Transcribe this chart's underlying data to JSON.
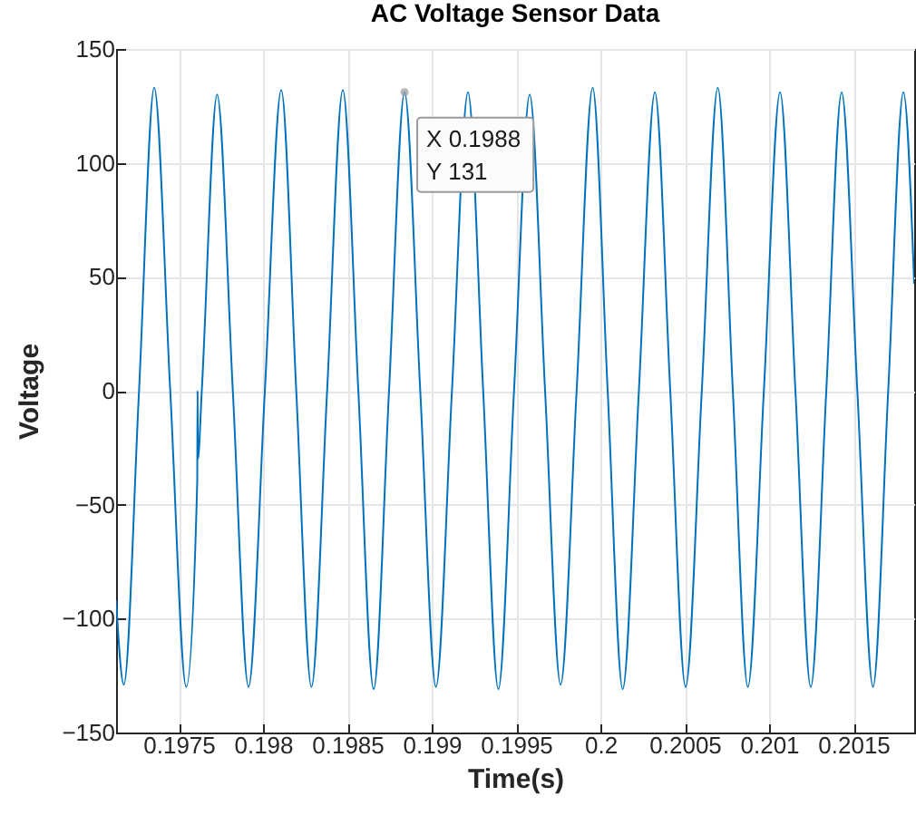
{
  "chart_data": {
    "type": "line",
    "title": "AC Voltage Sensor Data",
    "xlabel": "Time(s)",
    "ylabel": "Voltage",
    "x": [
      0.197129,
      0.197175,
      0.197265,
      0.197355,
      0.19745,
      0.197545,
      0.19761,
      0.197612,
      0.197614,
      0.197637,
      0.197728,
      0.197821,
      0.197914,
      0.198011,
      0.198108,
      0.198197,
      0.198287,
      0.19838,
      0.198473,
      0.198565,
      0.198656,
      0.198747,
      0.198839,
      0.198932,
      0.199025,
      0.19912,
      0.199215,
      0.199305,
      0.199395,
      0.199488,
      0.199581,
      0.199672,
      0.199764,
      0.199859,
      0.199954,
      0.200043,
      0.200132,
      0.200228,
      0.200323,
      0.200414,
      0.200505,
      0.200601,
      0.200696,
      0.200785,
      0.200874,
      0.200969,
      0.201065,
      0.201156,
      0.201247,
      0.201339,
      0.20143,
      0.201523,
      0.201616,
      0.201706,
      0.201796,
      0.20186
    ],
    "series": [
      {
        "color": "#0072bd",
        "values": [
          -92,
          -129,
          0,
          133,
          0,
          -130,
          -40,
          0,
          -30,
          0,
          130,
          0,
          -130,
          0,
          132,
          0,
          -130,
          0,
          132,
          0,
          -131,
          0,
          131,
          0,
          -130,
          0,
          131,
          0,
          -131,
          0,
          130,
          0,
          -129,
          0,
          133,
          0,
          -131,
          0,
          131,
          0,
          -130,
          0,
          133,
          0,
          -130,
          0,
          131,
          0,
          -130,
          0,
          131,
          0,
          -130,
          0,
          131,
          47
        ]
      }
    ],
    "xlim": [
      0.197129,
      0.20186
    ],
    "xticks": [
      0.1975,
      0.198,
      0.1985,
      0.199,
      0.1995,
      0.2,
      0.2005,
      0.201,
      0.2015
    ],
    "ylim": [
      -150,
      150
    ],
    "yticks": [
      -150,
      -100,
      -50,
      0,
      50,
      100,
      150
    ],
    "grid": true,
    "line_style": "solid",
    "marker": "none",
    "annotations": [
      {
        "text": "X 0.1988\nY 131",
        "x": 0.198839,
        "y": 131
      }
    ]
  }
}
